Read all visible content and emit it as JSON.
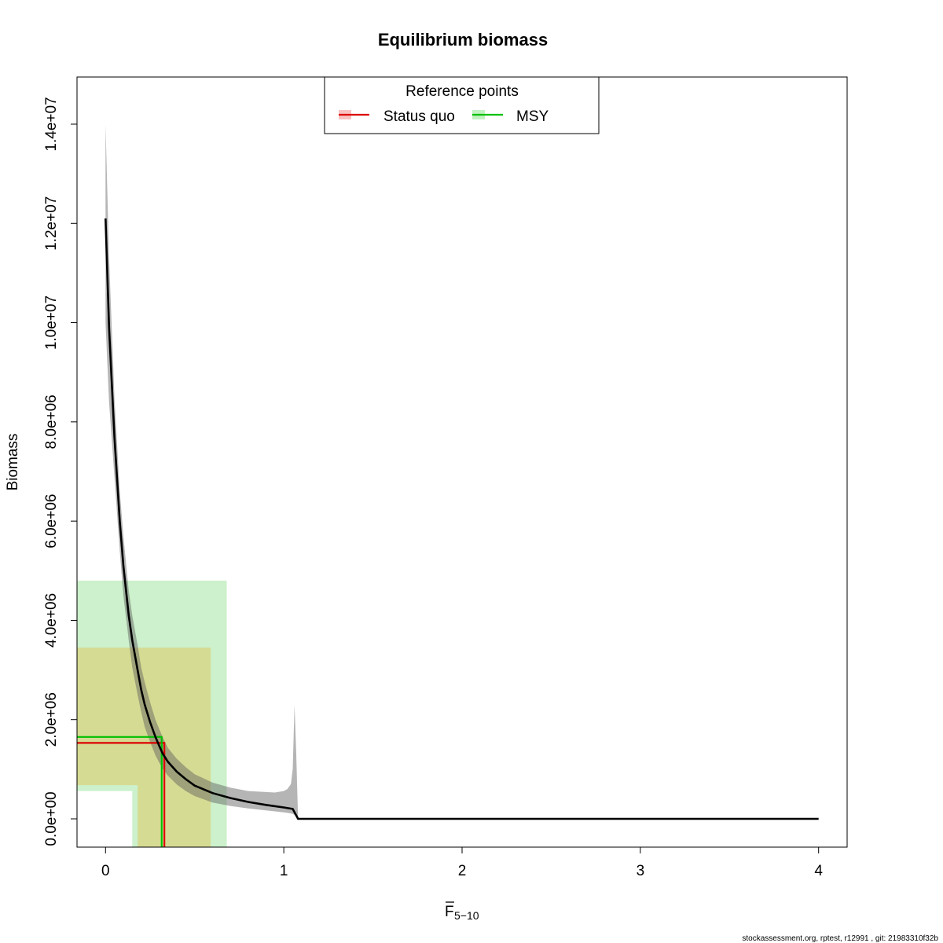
{
  "chart_data": {
    "type": "line",
    "title": "Equilibrium biomass",
    "xlabel_main": "F",
    "xlabel_sub": "5−10",
    "ylabel": "Biomass",
    "xlim": [
      -0.16,
      4.16
    ],
    "ylim": [
      -570000,
      14950000
    ],
    "x_ticks": [
      0,
      1,
      2,
      3,
      4
    ],
    "x_tick_labels": [
      "0",
      "1",
      "2",
      "3",
      "4"
    ],
    "y_ticks": [
      0,
      2000000,
      4000000,
      6000000,
      8000000,
      10000000,
      12000000,
      14000000
    ],
    "y_tick_labels": [
      "0.0e+00",
      "2.0e+06",
      "4.0e+06",
      "6.0e+06",
      "8.0e+06",
      "1.0e+07",
      "1.2e+07",
      "1.4e+07"
    ],
    "series": [
      {
        "name": "Equilibrium biomass",
        "color": "#000000",
        "x": [
          0,
          0.02,
          0.05,
          0.08,
          0.1,
          0.13,
          0.15,
          0.18,
          0.2,
          0.22,
          0.25,
          0.28,
          0.3,
          0.32,
          0.35,
          0.4,
          0.45,
          0.5,
          0.6,
          0.7,
          0.8,
          0.9,
          1.0,
          1.05,
          1.08,
          1.2,
          1.5,
          2.0,
          2.5,
          3.0,
          3.5,
          4.0
        ],
        "y": [
          12100000,
          9900000,
          7700000,
          6000000,
          5100000,
          4100000,
          3600000,
          3000000,
          2600000,
          2300000,
          1950000,
          1650000,
          1480000,
          1320000,
          1150000,
          950000,
          800000,
          670000,
          520000,
          420000,
          340000,
          280000,
          230000,
          200000,
          0,
          0,
          0,
          0,
          0,
          0,
          0,
          0
        ]
      }
    ],
    "uncertainty_band": {
      "color": "#b2b2b2",
      "x": [
        0,
        0.02,
        0.05,
        0.08,
        0.1,
        0.13,
        0.15,
        0.18,
        0.2,
        0.22,
        0.25,
        0.28,
        0.3,
        0.32,
        0.35,
        0.4,
        0.45,
        0.5,
        0.6,
        0.7,
        0.8,
        0.9,
        0.95,
        1.0,
        1.02,
        1.04,
        1.05,
        1.06,
        1.07,
        1.08
      ],
      "lower": [
        10000000,
        8400000,
        6900000,
        5400000,
        4500000,
        3600000,
        3050000,
        2500000,
        2150000,
        1850000,
        1550000,
        1280000,
        1140000,
        1010000,
        870000,
        690000,
        560000,
        460000,
        330000,
        260000,
        210000,
        170000,
        150000,
        130000,
        120000,
        110000,
        100000,
        80000,
        30000,
        0
      ],
      "upper": [
        14000000,
        11300000,
        8500000,
        6600000,
        5700000,
        4600000,
        4100000,
        3500000,
        3050000,
        2750000,
        2350000,
        2000000,
        1820000,
        1650000,
        1430000,
        1210000,
        1040000,
        900000,
        730000,
        630000,
        560000,
        540000,
        530000,
        560000,
        600000,
        700000,
        1000000,
        2300000,
        1300000,
        0
      ]
    },
    "reference_points": {
      "legend_title": "Reference points",
      "items": [
        {
          "name": "Status quo",
          "color": "#dd0000",
          "shade": "rgba(240,160,0,0.28)",
          "shade_outer": "rgba(255,120,120,0.25)",
          "f": 0.33,
          "biomass": 1530000,
          "f_range": [
            0.18,
            0.59
          ],
          "biomass_range": [
            680000,
            3450000
          ]
        },
        {
          "name": "MSY",
          "color": "#00c000",
          "shade": "rgba(110,215,110,0.35)",
          "f": 0.315,
          "biomass": 1650000,
          "f_range": [
            0.15,
            0.68
          ],
          "biomass_range": [
            560000,
            4800000
          ]
        }
      ]
    },
    "legend_position": "top"
  },
  "footer": "stockassessment.org, rptest, r12991 , git: 21983310f32b"
}
